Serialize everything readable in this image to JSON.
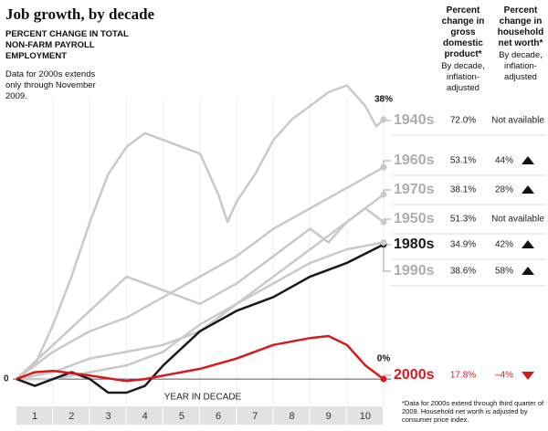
{
  "chart_data": {
    "type": "line",
    "title": "Job growth, by decade",
    "subtitle": "PERCENT CHANGE IN TOTAL NON-FARM PAYROLL EMPLOYMENT",
    "note": "Data for 2000s extends only through November 2009.",
    "xlabel": "YEAR IN DECADE",
    "categories": [
      "1",
      "2",
      "3",
      "4",
      "5",
      "6",
      "7",
      "8",
      "9",
      "10"
    ],
    "xlim": [
      0,
      10
    ],
    "ylim": [
      -4,
      44
    ],
    "yticks": [
      0
    ],
    "gdp_header": "Percent change in gross domestic product*",
    "gdp_subheader": "By decade, inflation-adjusted",
    "worth_header": "Percent change in household net worth*",
    "worth_subheader": "By decade, inflation-adjusted",
    "footnote": "*Data for 2000s extend through third quarter of 2009. Household net worth is adjusted by consumer price index.",
    "series": [
      {
        "name": "1940s",
        "color": "#c9c9c9",
        "gdp": "72.0%",
        "worth": "Not available",
        "trend": null,
        "end_label": "38%",
        "x": [
          0,
          0.5,
          1,
          1.5,
          2,
          2.5,
          3,
          3.5,
          4,
          4.5,
          5,
          5.5,
          5.75,
          6,
          6.5,
          7,
          7.5,
          8,
          8.5,
          9,
          9.5,
          9.8,
          10
        ],
        "values": [
          0,
          2,
          8,
          15,
          23,
          30,
          34,
          36,
          35,
          34,
          33,
          27,
          23,
          26,
          30,
          35,
          38,
          40,
          42,
          43,
          40,
          37,
          38
        ]
      },
      {
        "name": "1960s",
        "color": "#c9c9c9",
        "gdp": "53.1%",
        "worth": "44%",
        "trend": "up",
        "x": [
          0,
          1,
          2,
          3,
          4,
          5,
          6,
          7,
          8,
          9,
          10
        ],
        "values": [
          0,
          4,
          7,
          9,
          12,
          15,
          18,
          22,
          25,
          28,
          31
        ]
      },
      {
        "name": "1970s",
        "color": "#c9c9c9",
        "gdp": "38.1%",
        "worth": "28%",
        "trend": "up",
        "x": [
          0,
          1,
          2,
          3,
          4,
          5,
          6,
          7,
          8,
          9,
          10
        ],
        "values": [
          0,
          1,
          3,
          4,
          5,
          7,
          11,
          15,
          19,
          23,
          27
        ]
      },
      {
        "name": "1950s",
        "color": "#c9c9c9",
        "gdp": "51.3%",
        "worth": "Not available",
        "trend": null,
        "x": [
          0,
          1,
          2,
          3,
          4,
          5,
          6,
          7,
          8,
          8.5,
          9,
          9.5,
          10
        ],
        "values": [
          0,
          5,
          10,
          15,
          13,
          11,
          14,
          18,
          22,
          20,
          23,
          25,
          23
        ]
      },
      {
        "name": "1980s",
        "color": "#1a1a1a",
        "gdp": "34.9%",
        "worth": "42%",
        "trend": "up",
        "x": [
          0,
          0.5,
          1,
          1.5,
          2,
          2.5,
          3,
          3.5,
          4,
          5,
          6,
          7,
          8,
          9,
          10
        ],
        "values": [
          0,
          -1,
          0,
          1,
          0,
          -2,
          -2,
          -1,
          2,
          7,
          10,
          12,
          15,
          17,
          19.7
        ]
      },
      {
        "name": "1990s",
        "color": "#c9c9c9",
        "gdp": "38.6%",
        "worth": "58%",
        "trend": "up",
        "x": [
          0,
          1,
          2,
          3,
          4,
          5,
          6,
          7,
          8,
          9,
          10
        ],
        "values": [
          0,
          0,
          1,
          2,
          4,
          8,
          11,
          14,
          17,
          19,
          20
        ]
      },
      {
        "name": "2000s",
        "color": "#d7191c",
        "gdp": "17.8%",
        "worth": "–4%",
        "trend": "down",
        "end_label": "0%",
        "x": [
          0,
          0.5,
          1,
          2,
          3,
          3.5,
          4,
          5,
          6,
          7,
          8,
          8.5,
          9,
          9.5,
          10
        ],
        "values": [
          0,
          1,
          1.2,
          0.5,
          -0.3,
          0,
          0.5,
          1.5,
          3,
          5,
          6,
          6.3,
          5,
          2,
          0
        ]
      }
    ]
  }
}
